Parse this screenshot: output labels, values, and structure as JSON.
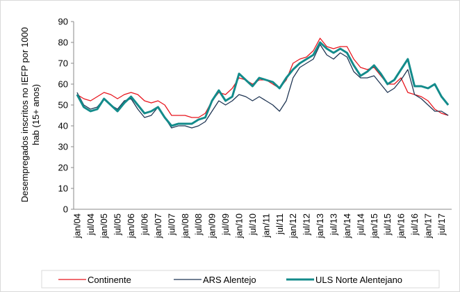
{
  "chart_data": {
    "type": "line",
    "ylabel": [
      "Desempregados inscritos no IEFP por 1000",
      "hab (15+ anos)"
    ],
    "categories": [
      "jan/04",
      null,
      "jul/04",
      null,
      "jan/05",
      null,
      "jul/05",
      null,
      "jan/06",
      null,
      "jul/06",
      null,
      "jan/07",
      null,
      "jul/07",
      null,
      "jan/08",
      null,
      "jul/08",
      null,
      "jan/09",
      null,
      "jul/09",
      null,
      "jan/10",
      null,
      "jul/10",
      null,
      "jan/11",
      null,
      "jul/11",
      null,
      "jan/12",
      null,
      "jul/12",
      null,
      "jan/13",
      null,
      "jul/13",
      null,
      "jan/14",
      null,
      "jul/14",
      null,
      "jan/15",
      null,
      "jul/15",
      null,
      "jan/16",
      null,
      "jul/16",
      null,
      "jan/17",
      null,
      "jul/17",
      null
    ],
    "series": [
      {
        "name": "Continente",
        "color": "#e8141c",
        "width": 1.3,
        "values": [
          55,
          53,
          52,
          54,
          56,
          55,
          53,
          55,
          56,
          55,
          52,
          51,
          52,
          50,
          45,
          45,
          45,
          44,
          44,
          46,
          52,
          56,
          55,
          58,
          63,
          62,
          60,
          62,
          62,
          60,
          58,
          62,
          70,
          72,
          73,
          76,
          82,
          78,
          77,
          78,
          78,
          72,
          68,
          67,
          68,
          64,
          60,
          60,
          63,
          56,
          55,
          54,
          52,
          48,
          46,
          45
        ]
      },
      {
        "name": "ARS Alentejo",
        "color": "#1f3553",
        "width": 1.3,
        "values": [
          56,
          50,
          48,
          49,
          53,
          50,
          48,
          52,
          53,
          48,
          44,
          45,
          49,
          44,
          39,
          40,
          40,
          39,
          40,
          42,
          47,
          52,
          50,
          52,
          55,
          54,
          52,
          54,
          52,
          50,
          47,
          52,
          63,
          68,
          70,
          72,
          79,
          74,
          72,
          75,
          73,
          66,
          63,
          63,
          64,
          60,
          56,
          58,
          62,
          67,
          55,
          53,
          50,
          47,
          47,
          45
        ]
      },
      {
        "name": "ULS Norte Alentejano",
        "color": "#138b8b",
        "width": 3,
        "values": [
          55,
          49,
          47,
          48,
          53,
          50,
          47,
          51,
          54,
          50,
          46,
          47,
          49,
          44,
          40,
          41,
          41,
          41,
          43,
          44,
          52,
          57,
          52,
          54,
          65,
          62,
          59,
          63,
          62,
          61,
          58,
          63,
          67,
          70,
          72,
          74,
          80,
          77,
          75,
          77,
          75,
          69,
          64,
          66,
          69,
          65,
          60,
          62,
          67,
          72,
          59,
          59,
          58,
          60,
          54,
          50
        ]
      }
    ],
    "ylim": [
      0,
      90
    ],
    "yticks": [
      0,
      10,
      20,
      30,
      40,
      50,
      60,
      70,
      80,
      90
    ]
  }
}
